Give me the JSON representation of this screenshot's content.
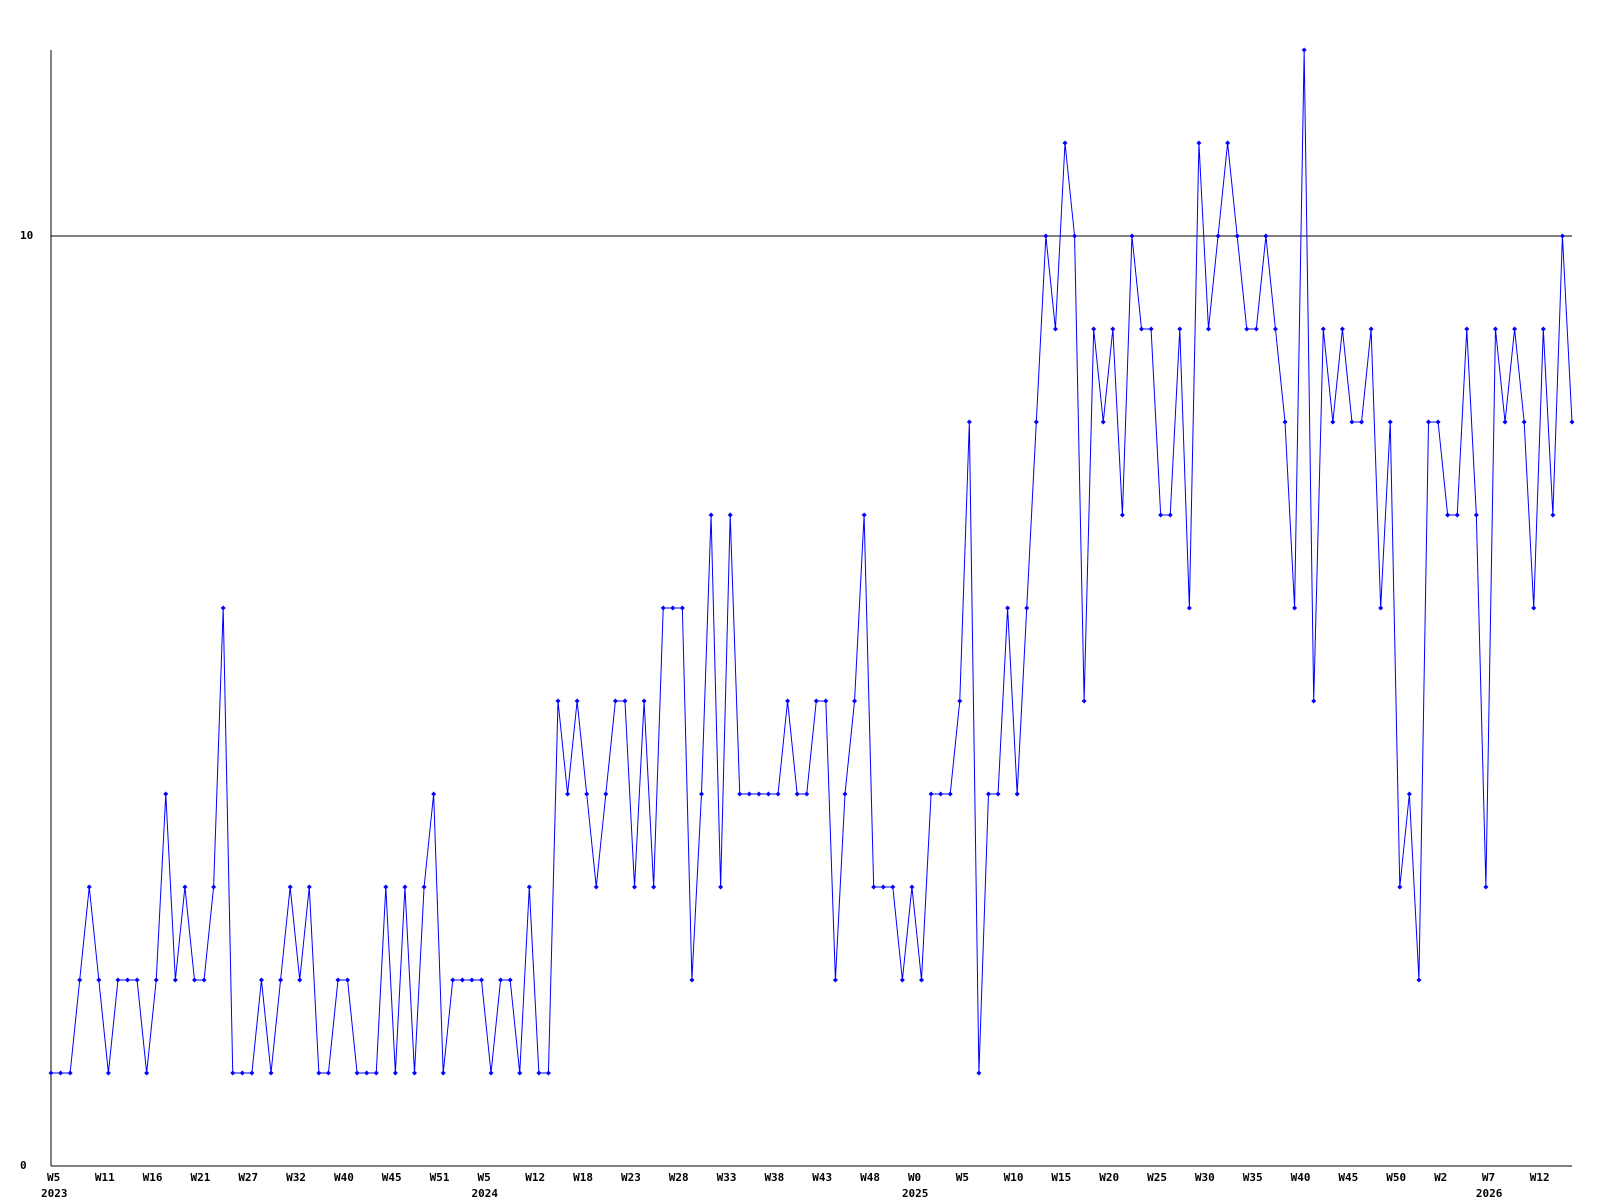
{
  "chart_data": {
    "type": "line",
    "categories": [
      "W5",
      null,
      null,
      null,
      null,
      "W11",
      null,
      null,
      null,
      null,
      "W16",
      null,
      null,
      null,
      null,
      "W21",
      null,
      null,
      null,
      null,
      "W27",
      null,
      null,
      null,
      null,
      "W32",
      null,
      null,
      null,
      null,
      "W40",
      null,
      null,
      null,
      null,
      "W45",
      null,
      null,
      null,
      null,
      "W51",
      null,
      null,
      null,
      null,
      "W5",
      null,
      null,
      null,
      null,
      "W12",
      null,
      null,
      null,
      null,
      "W18",
      null,
      null,
      null,
      null,
      "W23",
      null,
      null,
      null,
      null,
      "W28",
      null,
      null,
      null,
      null,
      "W33",
      null,
      null,
      null,
      null,
      "W38",
      null,
      null,
      null,
      null,
      "W43",
      null,
      null,
      null,
      null,
      "W48",
      null,
      null,
      null,
      null,
      "W0",
      null,
      null,
      null,
      null,
      "W5",
      null,
      null,
      null,
      null,
      "W10",
      null,
      null,
      null,
      null,
      "W15",
      null,
      null,
      null,
      null,
      "W20",
      null,
      null,
      null,
      null,
      "W25",
      null,
      null,
      null,
      null,
      "W30",
      null,
      null,
      null,
      null,
      "W35",
      null,
      null,
      null,
      null,
      "W40",
      null,
      null,
      null,
      null,
      "W45",
      null,
      null,
      null,
      null,
      "W50",
      null,
      null,
      null,
      null,
      "W2",
      null,
      null,
      null,
      null,
      "W7",
      null,
      null,
      null,
      null,
      "W12",
      null,
      null,
      null,
      null
    ],
    "year_labels": [
      "2023",
      null,
      null,
      null,
      null,
      null,
      null,
      null,
      null,
      null,
      null,
      null,
      null,
      null,
      null,
      null,
      null,
      null,
      null,
      null,
      null,
      null,
      null,
      null,
      null,
      null,
      null,
      null,
      null,
      null,
      null,
      null,
      null,
      null,
      null,
      null,
      null,
      null,
      null,
      null,
      null,
      null,
      null,
      null,
      null,
      "2024",
      null,
      null,
      null,
      null,
      null,
      null,
      null,
      null,
      null,
      null,
      null,
      null,
      null,
      null,
      null,
      null,
      null,
      null,
      null,
      null,
      null,
      null,
      null,
      null,
      null,
      null,
      null,
      null,
      null,
      null,
      null,
      null,
      null,
      null,
      null,
      null,
      null,
      null,
      null,
      null,
      null,
      null,
      null,
      null,
      "2025",
      null,
      null,
      null,
      null,
      null,
      null,
      null,
      null,
      null,
      null,
      null,
      null,
      null,
      null,
      null,
      null,
      null,
      null,
      null,
      null,
      null,
      null,
      null,
      null,
      null,
      null,
      null,
      null,
      null,
      null,
      null,
      null,
      null,
      null,
      null,
      null,
      null,
      null,
      null,
      null,
      null,
      null,
      null,
      null,
      null,
      null,
      null,
      null,
      null,
      null,
      null,
      null,
      null,
      null,
      null,
      null,
      null,
      null,
      null,
      "2026",
      null,
      null,
      null,
      null,
      null,
      null,
      null,
      null,
      null,
      null,
      null,
      null,
      null,
      null
    ],
    "series": [
      {
        "color": "#0000ff",
        "values": [
          1,
          1,
          1,
          2,
          3,
          2,
          1,
          2,
          2,
          2,
          1,
          2,
          4,
          2,
          3,
          2,
          2,
          3,
          6,
          1,
          1,
          1,
          2,
          1,
          2,
          3,
          2,
          3,
          1,
          1,
          2,
          2,
          1,
          1,
          1,
          3,
          1,
          3,
          1,
          3,
          4,
          1,
          2,
          2,
          2,
          2,
          1,
          2,
          2,
          1,
          3,
          1,
          1,
          5,
          4,
          5,
          4,
          3,
          4,
          5,
          5,
          3,
          5,
          3,
          6,
          6,
          6,
          2,
          4,
          7,
          3,
          7,
          4,
          4,
          4,
          4,
          4,
          5,
          4,
          4,
          5,
          5,
          2,
          4,
          5,
          7,
          3,
          3,
          3,
          2,
          3,
          2,
          4,
          4,
          4,
          5,
          8,
          1,
          4,
          4,
          6,
          4,
          6,
          8,
          10,
          9,
          11,
          10,
          5,
          9,
          8,
          9,
          7,
          10,
          9,
          9,
          7,
          7,
          9,
          6,
          11,
          9,
          10,
          11,
          10,
          9,
          9,
          10,
          9,
          8,
          6,
          12,
          5,
          9,
          8,
          9,
          8,
          8,
          9,
          6,
          8,
          3,
          4,
          2,
          8,
          8,
          7,
          7,
          9,
          7,
          3,
          9,
          8,
          9,
          8,
          6,
          9,
          7,
          10,
          8
        ]
      }
    ],
    "ylim": [
      0,
      12
    ],
    "yticks": [
      0,
      10
    ],
    "grid": true,
    "markers": true
  }
}
